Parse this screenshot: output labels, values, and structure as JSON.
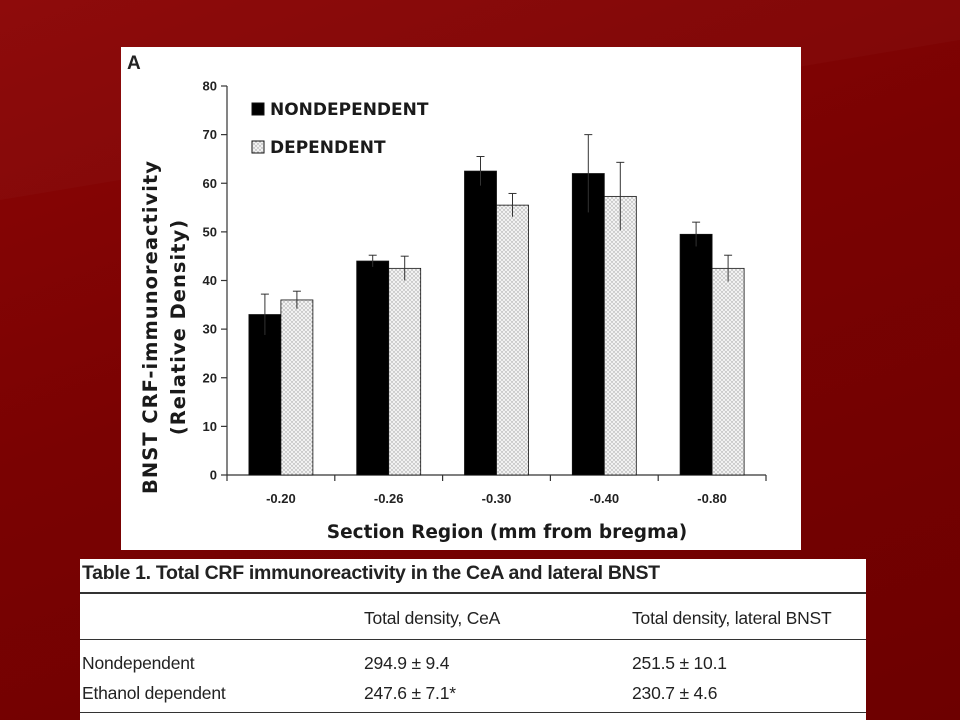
{
  "colors": {
    "background": "#7a0202",
    "panel": "#ffffff",
    "nondependent_fill": "#000000",
    "dependent_fill": "#f2f2f2",
    "dependent_dots": "#9a9a9a",
    "axis": "#333333"
  },
  "chart_data": {
    "type": "bar",
    "panel_label": "A",
    "categories": [
      "-0.20",
      "-0.26",
      "-0.30",
      "-0.40",
      "-0.80"
    ],
    "series": [
      {
        "name": "NONDEPENDENT",
        "values": [
          33,
          44,
          62.5,
          62,
          49.5
        ],
        "errors": [
          4.2,
          1.2,
          3,
          8,
          2.5
        ],
        "fill": "solid-black"
      },
      {
        "name": "DEPENDENT",
        "values": [
          36,
          42.5,
          55.5,
          57.3,
          42.5
        ],
        "errors": [
          1.8,
          2.5,
          2.4,
          7,
          2.7
        ],
        "fill": "dotted-white"
      }
    ],
    "ylabel_line1": "BNST CRF-immunoreactivity",
    "ylabel_line2": "(Relative Density)",
    "xlabel": "Section Region (mm from bregma)",
    "ylim": [
      0,
      80
    ],
    "yticks": [
      "0",
      "10",
      "20",
      "30",
      "40",
      "50",
      "60",
      "70",
      "80"
    ],
    "grid": false,
    "legend_position": "top-left"
  },
  "table": {
    "title": "Table 1. Total CRF immunoreactivity in the CeA and lateral BNST",
    "headers": [
      "",
      "Total density, CeA",
      "Total density, lateral BNST"
    ],
    "rows": [
      [
        "Nondependent",
        "294.9 ± 9.4",
        "251.5 ± 10.1"
      ],
      [
        "Ethanol dependent",
        "247.6 ± 7.1*",
        "230.7 ± 4.6"
      ]
    ]
  }
}
